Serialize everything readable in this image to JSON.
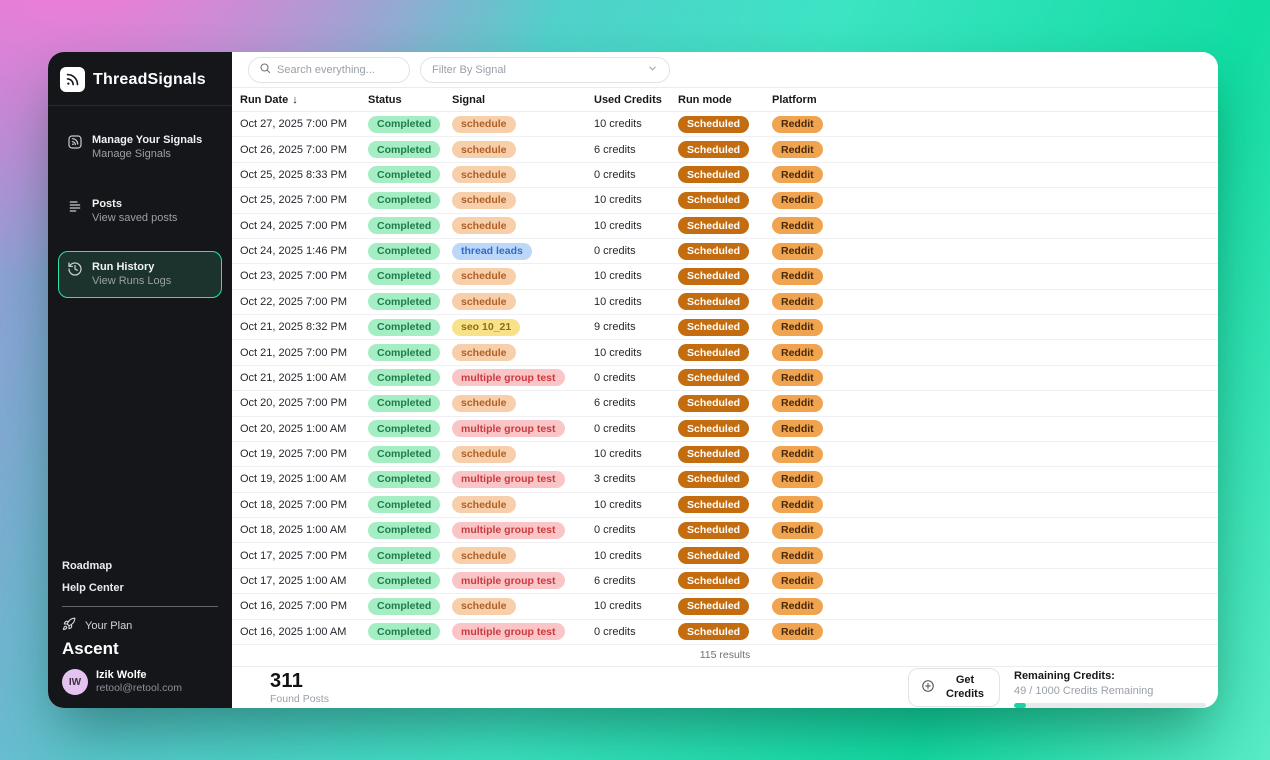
{
  "sidebar": {
    "logo_text": "ThreadSignals",
    "items": [
      {
        "title": "Manage Your Signals",
        "subtitle": "Manage Signals"
      },
      {
        "title": "Posts",
        "subtitle": "View saved posts"
      },
      {
        "title": "Run History",
        "subtitle": "View Runs Logs"
      }
    ],
    "links": [
      {
        "label": "Roadmap"
      },
      {
        "label": "Help Center"
      }
    ],
    "plan_label": "Your Plan",
    "plan_name": "Ascent",
    "user": {
      "initials": "IW",
      "name": "Izik Wolfe",
      "email": "retool@retool.com"
    }
  },
  "toolbar": {
    "search_placeholder": "Search everything...",
    "filter_placeholder": "Filter By Signal"
  },
  "table": {
    "columns": [
      "Run Date",
      "Status",
      "Signal",
      "Used Credits",
      "Run mode",
      "Platform"
    ],
    "sort_indicator": "↓",
    "results_text": "115 results",
    "rows": [
      {
        "date": "Oct 27, 2025 7:00 PM",
        "status": "Completed",
        "signal": "schedule",
        "credits": "10 credits",
        "run_mode": "Scheduled",
        "platform": "Reddit"
      },
      {
        "date": "Oct 26, 2025 7:00 PM",
        "status": "Completed",
        "signal": "schedule",
        "credits": "6 credits",
        "run_mode": "Scheduled",
        "platform": "Reddit"
      },
      {
        "date": "Oct 25, 2025 8:33 PM",
        "status": "Completed",
        "signal": "schedule",
        "credits": "0 credits",
        "run_mode": "Scheduled",
        "platform": "Reddit"
      },
      {
        "date": "Oct 25, 2025 7:00 PM",
        "status": "Completed",
        "signal": "schedule",
        "credits": "10 credits",
        "run_mode": "Scheduled",
        "platform": "Reddit"
      },
      {
        "date": "Oct 24, 2025 7:00 PM",
        "status": "Completed",
        "signal": "schedule",
        "credits": "10 credits",
        "run_mode": "Scheduled",
        "platform": "Reddit"
      },
      {
        "date": "Oct 24, 2025 1:46 PM",
        "status": "Completed",
        "signal": "thread leads",
        "credits": "0 credits",
        "run_mode": "Scheduled",
        "platform": "Reddit"
      },
      {
        "date": "Oct 23, 2025 7:00 PM",
        "status": "Completed",
        "signal": "schedule",
        "credits": "10 credits",
        "run_mode": "Scheduled",
        "platform": "Reddit"
      },
      {
        "date": "Oct 22, 2025 7:00 PM",
        "status": "Completed",
        "signal": "schedule",
        "credits": "10 credits",
        "run_mode": "Scheduled",
        "platform": "Reddit"
      },
      {
        "date": "Oct 21, 2025 8:32 PM",
        "status": "Completed",
        "signal": "seo 10_21",
        "credits": "9 credits",
        "run_mode": "Scheduled",
        "platform": "Reddit"
      },
      {
        "date": "Oct 21, 2025 7:00 PM",
        "status": "Completed",
        "signal": "schedule",
        "credits": "10 credits",
        "run_mode": "Scheduled",
        "platform": "Reddit"
      },
      {
        "date": "Oct 21, 2025 1:00 AM",
        "status": "Completed",
        "signal": "multiple group test",
        "credits": "0 credits",
        "run_mode": "Scheduled",
        "platform": "Reddit"
      },
      {
        "date": "Oct 20, 2025 7:00 PM",
        "status": "Completed",
        "signal": "schedule",
        "credits": "6 credits",
        "run_mode": "Scheduled",
        "platform": "Reddit"
      },
      {
        "date": "Oct 20, 2025 1:00 AM",
        "status": "Completed",
        "signal": "multiple group test",
        "credits": "0 credits",
        "run_mode": "Scheduled",
        "platform": "Reddit"
      },
      {
        "date": "Oct 19, 2025 7:00 PM",
        "status": "Completed",
        "signal": "schedule",
        "credits": "10 credits",
        "run_mode": "Scheduled",
        "platform": "Reddit"
      },
      {
        "date": "Oct 19, 2025 1:00 AM",
        "status": "Completed",
        "signal": "multiple group test",
        "credits": "3 credits",
        "run_mode": "Scheduled",
        "platform": "Reddit"
      },
      {
        "date": "Oct 18, 2025 7:00 PM",
        "status": "Completed",
        "signal": "schedule",
        "credits": "10 credits",
        "run_mode": "Scheduled",
        "platform": "Reddit"
      },
      {
        "date": "Oct 18, 2025 1:00 AM",
        "status": "Completed",
        "signal": "multiple group test",
        "credits": "0 credits",
        "run_mode": "Scheduled",
        "platform": "Reddit"
      },
      {
        "date": "Oct 17, 2025 7:00 PM",
        "status": "Completed",
        "signal": "schedule",
        "credits": "10 credits",
        "run_mode": "Scheduled",
        "platform": "Reddit"
      },
      {
        "date": "Oct 17, 2025 1:00 AM",
        "status": "Completed",
        "signal": "multiple group test",
        "credits": "6 credits",
        "run_mode": "Scheduled",
        "platform": "Reddit"
      },
      {
        "date": "Oct 16, 2025 7:00 PM",
        "status": "Completed",
        "signal": "schedule",
        "credits": "10 credits",
        "run_mode": "Scheduled",
        "platform": "Reddit"
      },
      {
        "date": "Oct 16, 2025 1:00 AM",
        "status": "Completed",
        "signal": "multiple group test",
        "credits": "0 credits",
        "run_mode": "Scheduled",
        "platform": "Reddit"
      }
    ]
  },
  "footer": {
    "found_posts_value": "311",
    "found_posts_label": "Found Posts",
    "get_credits_label": "Get Credits",
    "remaining_label": "Remaining Credits:",
    "remaining_value": "49 / 1000 Credits Remaining",
    "progress_percent": 6
  },
  "colors": {
    "accent": "#2ce3a7",
    "status_completed": {
      "bg": "#a5edc3",
      "fg": "#1d7c4c"
    },
    "run_mode_scheduled": {
      "bg": "#c36d10",
      "fg": "#ffffff"
    },
    "platform_reddit": {
      "bg": "#f0a44f",
      "fg": "#46290b"
    },
    "signals": {
      "schedule": {
        "bg": "#f8cfab",
        "fg": "#b05f24"
      },
      "thread leads": {
        "bg": "#bcd7f8",
        "fg": "#2f6cc9"
      },
      "seo 10_21": {
        "bg": "#f8e289",
        "fg": "#8f6f0e"
      },
      "multiple group test": {
        "bg": "#fac5c7",
        "fg": "#cb3a3e"
      }
    }
  }
}
